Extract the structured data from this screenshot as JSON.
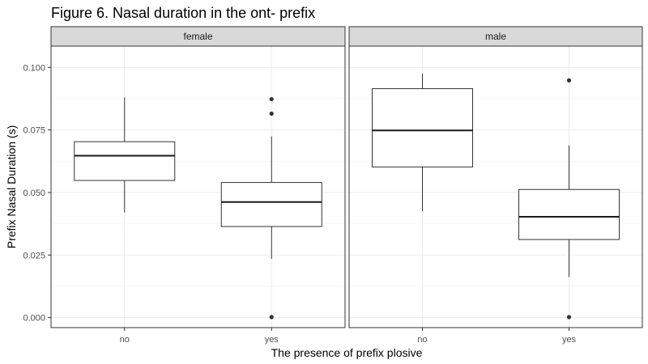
{
  "chart_data": {
    "type": "boxplot",
    "title": "Figure 6. Nasal duration in the ont- prefix",
    "xlabel": "The presence of prefix plosive",
    "ylabel": "Prefix Nasal Duration (s)",
    "ylim": [
      -0.004,
      0.1085
    ],
    "yticks": [
      "0.000",
      "0.025",
      "0.050",
      "0.075",
      "0.100"
    ],
    "ytick_values": [
      0,
      0.025,
      0.05,
      0.075,
      0.1
    ],
    "categories": [
      "no",
      "yes"
    ],
    "grid": true,
    "facets": [
      {
        "label": "female",
        "boxes": [
          {
            "category": "no",
            "whisker_low": 0.042,
            "q1": 0.0548,
            "median": 0.0647,
            "q3": 0.0703,
            "whisker_high": 0.088,
            "outliers": []
          },
          {
            "category": "yes",
            "whisker_low": 0.0235,
            "q1": 0.0364,
            "median": 0.0462,
            "q3": 0.054,
            "whisker_high": 0.0724,
            "outliers": [
              0.0002,
              0.0815,
              0.0873
            ]
          }
        ]
      },
      {
        "label": "male",
        "boxes": [
          {
            "category": "no",
            "whisker_low": 0.0425,
            "q1": 0.0602,
            "median": 0.0748,
            "q3": 0.0915,
            "whisker_high": 0.0975,
            "outliers": []
          },
          {
            "category": "yes",
            "whisker_low": 0.0162,
            "q1": 0.0312,
            "median": 0.0403,
            "q3": 0.0512,
            "whisker_high": 0.0688,
            "outliers": [
              0.0002,
              0.0948
            ]
          }
        ]
      }
    ]
  }
}
